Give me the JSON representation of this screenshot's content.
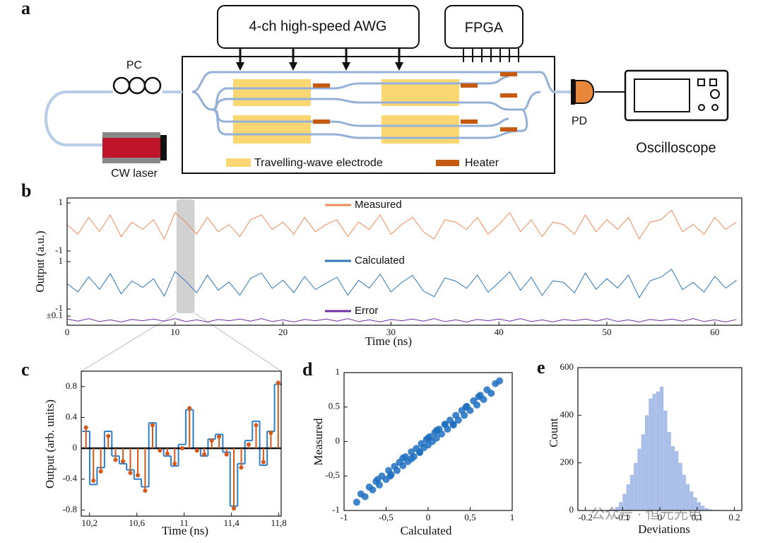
{
  "panel_labels": [
    "a",
    "b",
    "c",
    "d",
    "e"
  ],
  "diagram": {
    "awg": "4-ch high-speed AWG",
    "fpga": "FPGA",
    "pc": "PC",
    "laser": "CW laser",
    "pd": "PD",
    "scope": "Oscilloscope",
    "legend_electrode": "Travelling-wave electrode",
    "legend_heater": "Heater"
  },
  "watermark": "公众号 · 恒元光电",
  "chart_data": [
    {
      "type": "line",
      "xlabel": "Time (ns)",
      "ylabel": "Output (a.u.)",
      "xlim": [
        0,
        62.5
      ],
      "xticks": [
        0,
        10,
        20,
        30,
        40,
        50,
        60
      ],
      "x": [
        0,
        1,
        2,
        3,
        4,
        5,
        6,
        7,
        8,
        9,
        10,
        11,
        12,
        13,
        14,
        15,
        16,
        17,
        18,
        19,
        20,
        21,
        22,
        23,
        24,
        25,
        26,
        27,
        28,
        29,
        30,
        31,
        32,
        33,
        34,
        35,
        36,
        37,
        38,
        39,
        40,
        41,
        42,
        43,
        44,
        45,
        46,
        47,
        48,
        49,
        50,
        51,
        52,
        53,
        54,
        55,
        56,
        57,
        58,
        59,
        60,
        61,
        62
      ],
      "series": [
        {
          "name": "Measured",
          "color": "#ef8a5a",
          "ylim": [
            -1,
            1
          ],
          "yticks": [
            1,
            -1
          ],
          "values": [
            0.1,
            -0.3,
            0.4,
            -0.2,
            0.5,
            -0.4,
            0.2,
            -0.1,
            0.3,
            -0.5,
            0.6,
            0.2,
            -0.3,
            0.4,
            -0.2,
            0.1,
            -0.4,
            0.3,
            0.5,
            -0.1,
            0.2,
            -0.3,
            0.4,
            -0.2,
            0.1,
            0.3,
            -0.4,
            0.2,
            -0.1,
            0.5,
            -0.3,
            0.1,
            0.4,
            -0.2,
            -0.5,
            0.3,
            0.2,
            -0.1,
            0.4,
            -0.3,
            0.1,
            0.6,
            -0.2,
            0.3,
            -0.4,
            0.2,
            0.1,
            -0.3,
            0.5,
            -0.2,
            0.3,
            -0.1,
            0.4,
            -0.5,
            0.2,
            0.3,
            0.7,
            -0.2,
            0.1,
            -0.3,
            0.4,
            -0.1,
            0.2
          ]
        },
        {
          "name": "Calculated",
          "color": "#2e75b6",
          "ylim": [
            -1,
            1
          ],
          "yticks": [
            1,
            -1
          ],
          "values": [
            0.07,
            -0.28,
            0.36,
            -0.17,
            0.49,
            -0.36,
            0.18,
            -0.09,
            0.27,
            -0.46,
            0.58,
            0.17,
            -0.32,
            0.43,
            -0.21,
            0.14,
            -0.42,
            0.29,
            0.52,
            -0.13,
            0.22,
            -0.31,
            0.37,
            -0.18,
            0.09,
            0.34,
            -0.42,
            0.21,
            -0.12,
            0.47,
            -0.28,
            0.12,
            0.42,
            -0.24,
            -0.48,
            0.31,
            0.18,
            -0.13,
            0.43,
            -0.29,
            0.12,
            0.57,
            -0.21,
            0.34,
            -0.43,
            0.19,
            0.12,
            -0.32,
            0.52,
            -0.17,
            0.28,
            -0.12,
            0.43,
            -0.52,
            0.19,
            0.34,
            0.68,
            -0.18,
            0.12,
            -0.29,
            0.38,
            -0.12,
            0.21
          ]
        },
        {
          "name": "Error",
          "color": "#7030a0",
          "ylim": [
            -0.1,
            0.1
          ],
          "yticks": [
            {
              "value": 0.1,
              "label": "±0.1"
            }
          ],
          "values": [
            0.03,
            -0.02,
            0.04,
            -0.03,
            0.01,
            -0.04,
            0.02,
            -0.01,
            0.03,
            -0.02,
            0.04,
            -0.03,
            0.01,
            -0.04,
            0.02,
            -0.01,
            0.03,
            -0.02,
            0.04,
            -0.03,
            0.01,
            -0.04,
            0.02,
            -0.01,
            0.03,
            -0.02,
            0.04,
            -0.03,
            0.01,
            -0.04,
            0.02,
            -0.01,
            0.03,
            -0.02,
            0.04,
            -0.03,
            0.01,
            -0.04,
            0.02,
            -0.01,
            0.03,
            -0.02,
            0.04,
            -0.03,
            0.01,
            -0.04,
            0.02,
            -0.01,
            0.03,
            -0.02,
            0.04,
            -0.03,
            0.01,
            -0.04,
            0.02,
            -0.01,
            0.03,
            -0.02,
            0.04,
            -0.03,
            0.01,
            -0.04,
            0.02
          ]
        }
      ]
    },
    {
      "type": "stem",
      "xlabel": "Time (ns)",
      "ylabel": "Output (arb. units)",
      "xlim": [
        10.13,
        11.82
      ],
      "ylim": [
        -0.88,
        1.0
      ],
      "xticks": [
        {
          "value": 10.2,
          "label": "10,2"
        },
        {
          "value": 10.6,
          "label": "10,6"
        },
        11,
        {
          "value": 11.4,
          "label": "11,4"
        },
        {
          "value": 11.8,
          "label": "11,8"
        }
      ],
      "yticks": [
        0.8,
        0.4,
        0,
        -0.4,
        -0.8
      ],
      "x": [
        10.17,
        10.233,
        10.295,
        10.358,
        10.42,
        10.483,
        10.545,
        10.608,
        10.67,
        10.733,
        10.795,
        10.858,
        10.92,
        10.983,
        11.045,
        11.108,
        11.17,
        11.233,
        11.295,
        11.358,
        11.42,
        11.483,
        11.545,
        11.608,
        11.67,
        11.733,
        11.795
      ],
      "series": [
        {
          "color": "#2f7fc8",
          "values": [
            0.22,
            -0.47,
            -0.25,
            0.22,
            -0.1,
            -0.2,
            -0.28,
            -0.4,
            -0.5,
            0.33,
            0.0,
            -0.1,
            -0.23,
            0.05,
            0.5,
            0.0,
            -0.1,
            0.12,
            0.18,
            -0.05,
            -0.75,
            -0.2,
            0.1,
            0.35,
            -0.22,
            0.22,
            0.83
          ]
        },
        {
          "color": "#d4581c",
          "values": [
            0.27,
            -0.42,
            -0.3,
            0.16,
            -0.15,
            -0.17,
            -0.32,
            -0.35,
            -0.55,
            0.3,
            -0.03,
            -0.07,
            -0.2,
            0.0,
            0.52,
            -0.03,
            -0.08,
            0.1,
            0.15,
            -0.08,
            -0.78,
            -0.25,
            0.05,
            0.3,
            -0.18,
            0.2,
            0.85
          ]
        }
      ]
    },
    {
      "type": "scatter",
      "xlabel": "Calculated",
      "ylabel": "Measured",
      "color": "#1f6fc0",
      "xlim": [
        -1,
        1
      ],
      "ylim": [
        -1,
        1
      ],
      "xticks": [
        -1,
        {
          "value": -0.5,
          "label": "-0,5"
        },
        0,
        {
          "value": 0.5,
          "label": "0,5"
        },
        1
      ],
      "yticks": [
        1,
        0.5,
        0,
        {
          "value": -0.5,
          "label": "-0,5"
        },
        -1
      ],
      "x": [
        -0.85,
        -0.8,
        -0.75,
        -0.7,
        -0.66,
        -0.62,
        -0.58,
        -0.55,
        -0.5,
        -0.47,
        -0.44,
        -0.4,
        -0.37,
        -0.34,
        -0.3,
        -0.27,
        -0.24,
        -0.2,
        -0.17,
        -0.14,
        -0.1,
        -0.08,
        -0.05,
        -0.02,
        0,
        0.02,
        0.05,
        0.08,
        0.1,
        0.13,
        0.16,
        0.2,
        0.23,
        0.26,
        0.3,
        0.33,
        0.36,
        0.4,
        0.43,
        0.46,
        0.5,
        0.54,
        0.58,
        0.62,
        0.66,
        0.7,
        0.75,
        0.8,
        0.85,
        -0.3,
        -0.1,
        0.1,
        0.3,
        -0.45,
        0.45,
        -0.6,
        0.6,
        0,
        -0.2,
        0.2
      ],
      "values": [
        -0.88,
        -0.76,
        -0.8,
        -0.66,
        -0.7,
        -0.58,
        -0.63,
        -0.5,
        -0.55,
        -0.42,
        -0.48,
        -0.36,
        -0.42,
        -0.3,
        -0.35,
        -0.22,
        -0.29,
        -0.15,
        -0.22,
        -0.1,
        -0.15,
        -0.03,
        -0.09,
        0.03,
        -0.05,
        0.07,
        0.0,
        0.13,
        0.05,
        0.18,
        0.11,
        0.25,
        0.18,
        0.31,
        0.25,
        0.38,
        0.31,
        0.45,
        0.38,
        0.51,
        0.45,
        0.59,
        0.53,
        0.67,
        0.61,
        0.75,
        0.7,
        0.84,
        0.88,
        -0.24,
        -0.16,
        0.16,
        0.24,
        -0.5,
        0.5,
        -0.55,
        0.65,
        0.05,
        -0.25,
        0.25
      ]
    },
    {
      "type": "histogram",
      "xlabel": "Deviations",
      "ylabel": "Count",
      "color": "#a9bfe8",
      "xlim": [
        -0.22,
        0.22
      ],
      "ylim": [
        0,
        600
      ],
      "xticks": [
        -0.2,
        -0.1,
        0,
        {
          "value": 0.1,
          "label": "0,1"
        },
        0.2
      ],
      "yticks": [
        0,
        200,
        400,
        600
      ],
      "bins": [
        -0.2,
        -0.19,
        -0.18,
        -0.17,
        -0.16,
        -0.15,
        -0.14,
        -0.13,
        -0.12,
        -0.11,
        -0.1,
        -0.09,
        -0.08,
        -0.07,
        -0.06,
        -0.05,
        -0.04,
        -0.03,
        -0.02,
        -0.01,
        0,
        0.01,
        0.02,
        0.03,
        0.04,
        0.05,
        0.06,
        0.07,
        0.08,
        0.09,
        0.1,
        0.11,
        0.12,
        0.13,
        0.14,
        0.15,
        0.16,
        0.17,
        0.18,
        0.19,
        0.2
      ],
      "values": [
        0,
        0,
        0,
        0,
        0,
        0,
        2,
        5,
        15,
        35,
        70,
        110,
        150,
        200,
        260,
        320,
        400,
        470,
        490,
        500,
        520,
        420,
        330,
        270,
        250,
        200,
        150,
        110,
        80,
        55,
        35,
        20,
        10,
        5,
        2,
        0,
        0,
        0,
        0,
        0
      ]
    }
  ]
}
